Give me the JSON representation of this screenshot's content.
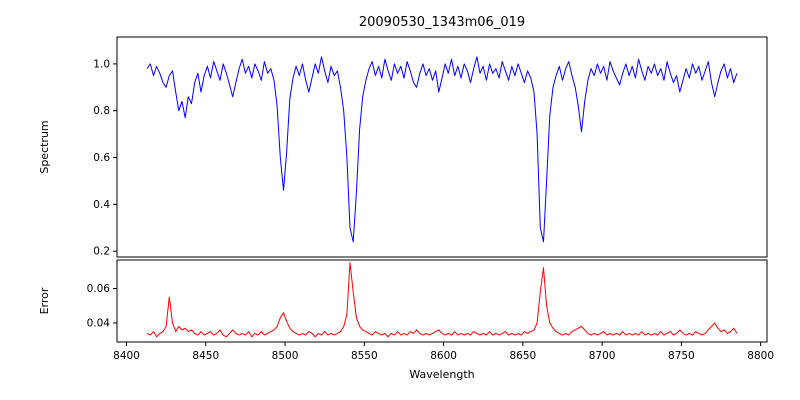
{
  "chart_data": {
    "type": "line",
    "title": "20090530_1343m06_019",
    "xlabel": "Wavelength",
    "xlim": [
      8394,
      8804
    ],
    "xticks": [
      {
        "value": 8400,
        "label": "8400"
      },
      {
        "value": 8450,
        "label": "8450"
      },
      {
        "value": 8500,
        "label": "8500"
      },
      {
        "value": 8550,
        "label": "8550"
      },
      {
        "value": 8600,
        "label": "8600"
      },
      {
        "value": 8650,
        "label": "8650"
      },
      {
        "value": 8700,
        "label": "8700"
      },
      {
        "value": 8750,
        "label": "8750"
      },
      {
        "value": 8800,
        "label": "8800"
      }
    ],
    "panels": [
      {
        "ylabel": "Spectrum",
        "ylim": [
          0.175,
          1.115
        ],
        "yticks": [
          {
            "value": 0.2,
            "label": "0.2"
          },
          {
            "value": 0.4,
            "label": "0.4"
          },
          {
            "value": 0.6,
            "label": "0.6"
          },
          {
            "value": 0.8,
            "label": "0.8"
          },
          {
            "value": 1.0,
            "label": "1.0"
          }
        ],
        "series": [
          {
            "name": "spectrum",
            "color": "#0000ff",
            "x_start": 8413,
            "x_step": 2,
            "values": [
              0.98,
              1.0,
              0.95,
              0.99,
              0.96,
              0.92,
              0.9,
              0.95,
              0.97,
              0.88,
              0.8,
              0.84,
              0.77,
              0.86,
              0.83,
              0.92,
              0.96,
              0.88,
              0.95,
              0.99,
              0.94,
              1.01,
              0.97,
              0.93,
              1.0,
              0.96,
              0.91,
              0.86,
              0.92,
              0.98,
              1.02,
              0.96,
              0.99,
              0.94,
              1.0,
              0.97,
              0.93,
              1.01,
              0.96,
              0.98,
              0.93,
              0.82,
              0.6,
              0.46,
              0.62,
              0.85,
              0.94,
              0.99,
              0.95,
              1.0,
              0.93,
              0.88,
              0.94,
              1.0,
              0.96,
              1.03,
              0.97,
              0.92,
              0.99,
              0.95,
              0.97,
              0.9,
              0.8,
              0.6,
              0.3,
              0.24,
              0.45,
              0.72,
              0.86,
              0.93,
              0.98,
              1.01,
              0.95,
              0.99,
              0.94,
              1.02,
              0.97,
              0.93,
              1.0,
              0.96,
              0.99,
              0.94,
              1.01,
              0.97,
              0.92,
              0.9,
              0.96,
              1.0,
              0.95,
              0.98,
              0.93,
              0.97,
              0.88,
              0.94,
              1.0,
              0.96,
              1.02,
              0.95,
              0.99,
              0.94,
              1.0,
              0.97,
              0.92,
              0.98,
              1.03,
              0.96,
              0.99,
              0.93,
              1.0,
              0.96,
              0.98,
              0.94,
              1.01,
              0.97,
              0.93,
              0.99,
              0.95,
              1.0,
              0.96,
              0.92,
              0.97,
              0.94,
              0.88,
              0.7,
              0.3,
              0.24,
              0.5,
              0.78,
              0.9,
              0.95,
              0.99,
              0.93,
              0.98,
              1.01,
              0.95,
              0.9,
              0.82,
              0.71,
              0.84,
              0.93,
              0.98,
              0.95,
              1.0,
              0.96,
              0.99,
              0.93,
              1.01,
              0.97,
              0.94,
              0.91,
              0.96,
              1.0,
              0.95,
              0.99,
              0.94,
              1.02,
              0.97,
              0.93,
              0.99,
              0.96,
              1.0,
              0.95,
              0.98,
              0.93,
              1.01,
              0.96,
              0.92,
              0.95,
              0.88,
              0.93,
              0.98,
              0.94,
              1.0,
              0.96,
              0.99,
              0.93,
              0.97,
              1.01,
              0.92,
              0.86,
              0.92,
              0.97,
              1.0,
              0.94,
              0.98,
              0.92,
              0.96
            ]
          }
        ]
      },
      {
        "ylabel": "Error",
        "ylim": [
          0.029,
          0.0765
        ],
        "yticks": [
          {
            "value": 0.04,
            "label": "0.04"
          },
          {
            "value": 0.06,
            "label": "0.06"
          }
        ],
        "series": [
          {
            "name": "error",
            "color": "#ff0000",
            "x_start": 8413,
            "x_step": 2,
            "values": [
              0.034,
              0.033,
              0.035,
              0.032,
              0.034,
              0.035,
              0.038,
              0.055,
              0.04,
              0.035,
              0.038,
              0.036,
              0.037,
              0.035,
              0.036,
              0.034,
              0.033,
              0.035,
              0.033,
              0.034,
              0.035,
              0.033,
              0.034,
              0.036,
              0.033,
              0.032,
              0.034,
              0.036,
              0.034,
              0.033,
              0.034,
              0.033,
              0.035,
              0.032,
              0.034,
              0.033,
              0.035,
              0.033,
              0.034,
              0.035,
              0.036,
              0.038,
              0.043,
              0.046,
              0.041,
              0.037,
              0.035,
              0.034,
              0.033,
              0.034,
              0.033,
              0.035,
              0.034,
              0.032,
              0.034,
              0.033,
              0.035,
              0.033,
              0.034,
              0.033,
              0.034,
              0.035,
              0.038,
              0.045,
              0.075,
              0.058,
              0.043,
              0.038,
              0.036,
              0.035,
              0.034,
              0.033,
              0.035,
              0.034,
              0.033,
              0.034,
              0.032,
              0.034,
              0.033,
              0.035,
              0.033,
              0.034,
              0.033,
              0.035,
              0.034,
              0.036,
              0.034,
              0.033,
              0.034,
              0.033,
              0.034,
              0.035,
              0.036,
              0.034,
              0.033,
              0.034,
              0.033,
              0.035,
              0.033,
              0.034,
              0.033,
              0.034,
              0.033,
              0.035,
              0.034,
              0.033,
              0.034,
              0.033,
              0.035,
              0.033,
              0.034,
              0.033,
              0.034,
              0.035,
              0.033,
              0.034,
              0.033,
              0.034,
              0.033,
              0.035,
              0.034,
              0.035,
              0.036,
              0.04,
              0.058,
              0.072,
              0.05,
              0.04,
              0.037,
              0.035,
              0.034,
              0.033,
              0.034,
              0.033,
              0.035,
              0.036,
              0.037,
              0.038,
              0.036,
              0.034,
              0.033,
              0.034,
              0.033,
              0.034,
              0.035,
              0.033,
              0.034,
              0.033,
              0.034,
              0.033,
              0.035,
              0.033,
              0.034,
              0.033,
              0.034,
              0.033,
              0.035,
              0.033,
              0.034,
              0.033,
              0.034,
              0.033,
              0.035,
              0.033,
              0.034,
              0.035,
              0.033,
              0.034,
              0.036,
              0.034,
              0.033,
              0.034,
              0.033,
              0.035,
              0.034,
              0.033,
              0.034,
              0.036,
              0.038,
              0.04,
              0.037,
              0.035,
              0.036,
              0.034,
              0.035,
              0.037,
              0.034
            ]
          }
        ]
      }
    ]
  }
}
